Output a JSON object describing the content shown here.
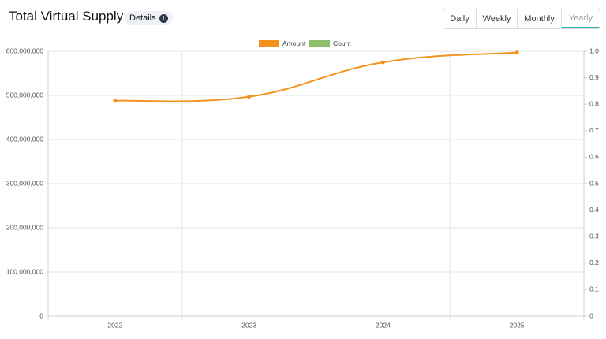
{
  "header": {
    "title": "Total Virtual Supply",
    "details": "Details",
    "tabs": [
      "Daily",
      "Weekly",
      "Monthly",
      "Yearly"
    ],
    "active_tab": 3
  },
  "chart_data": {
    "type": "line",
    "categories": [
      "2022",
      "2023",
      "2024",
      "2025"
    ],
    "series": [
      {
        "name": "Amount",
        "color": "#f4921f",
        "values": [
          488000000,
          497000000,
          575000000,
          597000000
        ]
      },
      {
        "name": "Count",
        "color": "#8dbf6b",
        "axis": "y2",
        "values": [
          null,
          null,
          null,
          null
        ]
      }
    ],
    "ylim": [
      0,
      600000000
    ],
    "yticks": [
      0,
      {
        "value": 100000000,
        "label": "100,000,000"
      },
      {
        "value": 200000000,
        "label": "200,000,000"
      },
      {
        "value": 300000000,
        "label": "300,000,000"
      },
      {
        "value": 400000000,
        "label": "400,000,000"
      },
      {
        "value": 500000000,
        "label": "500,000,000"
      },
      {
        "value": 600000000,
        "label": "600,000,000"
      }
    ],
    "y2lim": [
      0,
      1
    ],
    "y2ticks": [
      0,
      0.1,
      0.2,
      0.3,
      0.4,
      0.5,
      0.6,
      0.7,
      0.8,
      0.9,
      {
        "value": 1,
        "label": "1.0"
      }
    ],
    "grid": true,
    "legend": "top",
    "smooth": true
  }
}
